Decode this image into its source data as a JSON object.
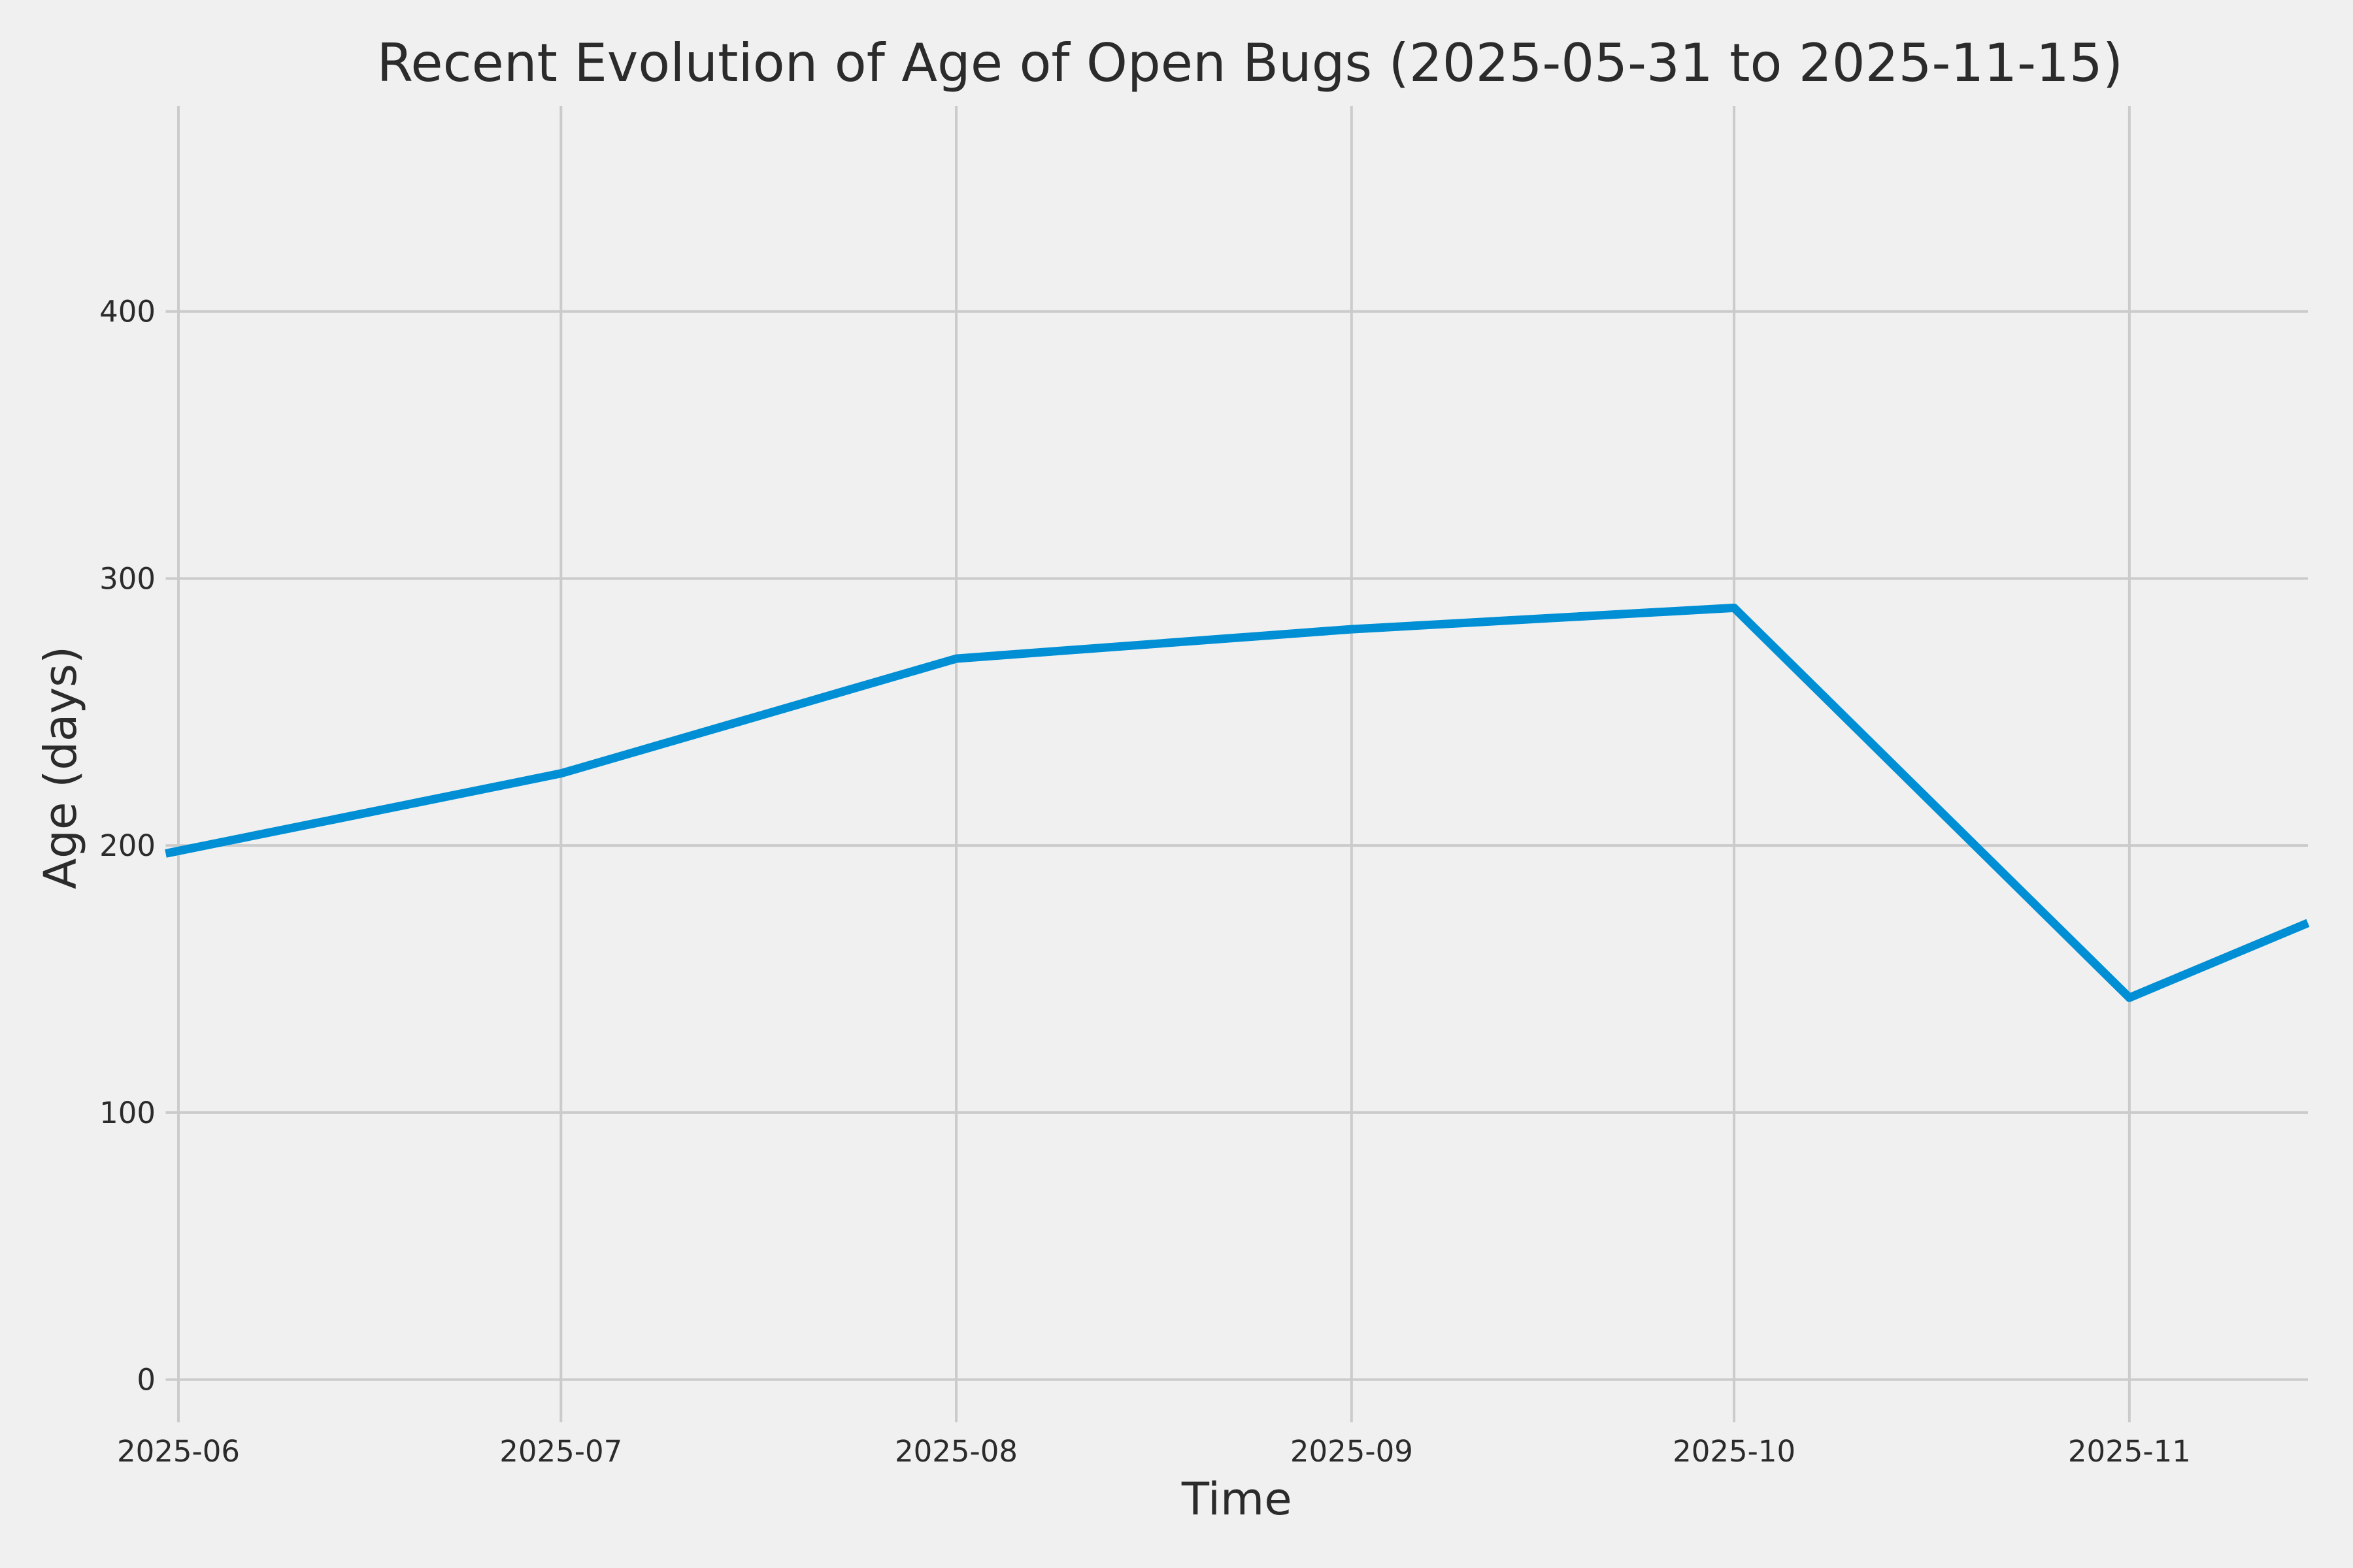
{
  "chart_data": {
    "type": "line",
    "title": "Recent Evolution of Age of Open Bugs (2025-05-31 to 2025-11-15)",
    "xlabel": "Time",
    "ylabel": "Age (days)",
    "x": [
      "2025-05-31",
      "2025-07-01",
      "2025-08-01",
      "2025-09-01",
      "2025-10-01",
      "2025-11-01",
      "2025-11-15"
    ],
    "values": [
      197,
      227,
      270,
      281,
      289,
      143,
      171
    ],
    "x_ticks": [
      {
        "date": "2025-06-01",
        "label": "2025-06"
      },
      {
        "date": "2025-07-01",
        "label": "2025-07"
      },
      {
        "date": "2025-08-01",
        "label": "2025-08"
      },
      {
        "date": "2025-09-01",
        "label": "2025-09"
      },
      {
        "date": "2025-10-01",
        "label": "2025-10"
      },
      {
        "date": "2025-11-01",
        "label": "2025-11"
      }
    ],
    "y_ticks": [
      0,
      100,
      200,
      300,
      400
    ],
    "xlim": [
      "2025-05-31",
      "2025-11-15"
    ],
    "ylim": [
      -16,
      477
    ],
    "grid": true,
    "legend": null,
    "colors": {
      "line": "#008fd5",
      "background": "#f0f0f0",
      "gridline": "#cbcbcb",
      "text": "#2b2b2b"
    }
  }
}
